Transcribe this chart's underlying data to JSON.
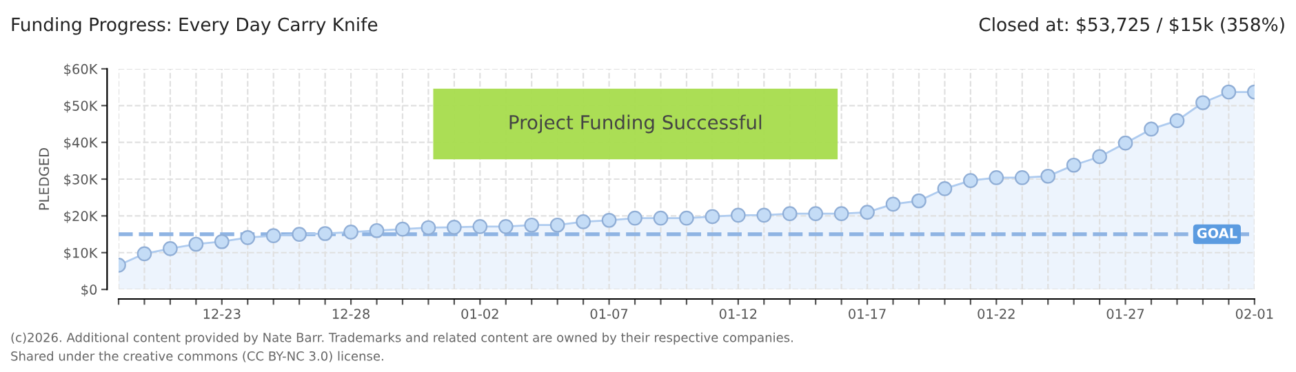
{
  "chart_data": {
    "type": "area",
    "title": "Funding Progress: Every Day Carry Knife",
    "ylabel": "PLEDGED",
    "annotations": [
      "Closed at: $53,725 / $15k (358%)",
      "Project Funding Successful",
      "(c)2026. Additional content provided by Nate Barr. Trademarks and related content are owned by their respective companies.",
      "Shared under the creative commons (CC BY-NC 3.0) license."
    ],
    "x": [
      "2025-12-19",
      "2025-12-20",
      "2025-12-21",
      "2025-12-22",
      "2025-12-23",
      "2025-12-24",
      "2025-12-25",
      "2025-12-26",
      "2025-12-27",
      "2025-12-28",
      "2025-12-29",
      "2025-12-30",
      "2025-12-31",
      "2026-01-01",
      "2026-01-02",
      "2026-01-03",
      "2026-01-04",
      "2026-01-05",
      "2026-01-06",
      "2026-01-07",
      "2026-01-08",
      "2026-01-09",
      "2026-01-10",
      "2026-01-11",
      "2026-01-12",
      "2026-01-13",
      "2026-01-14",
      "2026-01-15",
      "2026-01-16",
      "2026-01-17",
      "2026-01-18",
      "2026-01-19",
      "2026-01-20",
      "2026-01-21",
      "2026-01-22",
      "2026-01-23",
      "2026-01-24",
      "2026-01-25",
      "2026-01-26",
      "2026-01-27",
      "2026-01-28",
      "2026-01-29",
      "2026-01-30",
      "2026-01-31",
      "2026-02-01"
    ],
    "series": [
      {
        "color": "#aecbef",
        "values": [
          6600,
          9700,
          11100,
          12300,
          13000,
          14100,
          14600,
          15000,
          15200,
          15600,
          16000,
          16400,
          16800,
          16900,
          17100,
          17100,
          17500,
          17500,
          18400,
          18800,
          19400,
          19400,
          19400,
          19800,
          20200,
          20200,
          20600,
          20600,
          20600,
          21000,
          23200,
          24100,
          27400,
          29600,
          30400,
          30400,
          30800,
          33800,
          36100,
          39800,
          43600,
          45900,
          50800,
          53700,
          53700
        ]
      }
    ],
    "xlim": [
      "2025-12-19",
      "2026-02-01"
    ],
    "xticks": [
      {
        "value": "2025-12-19",
        "label": null
      },
      {
        "value": "2025-12-20",
        "label": null
      },
      {
        "value": "2025-12-21",
        "label": null
      },
      {
        "value": "2025-12-22",
        "label": null
      },
      {
        "value": "2025-12-23",
        "label": "12-23"
      },
      {
        "value": "2025-12-24",
        "label": null
      },
      {
        "value": "2025-12-25",
        "label": null
      },
      {
        "value": "2025-12-26",
        "label": null
      },
      {
        "value": "2025-12-27",
        "label": null
      },
      {
        "value": "2025-12-28",
        "label": "12-28"
      },
      {
        "value": "2025-12-29",
        "label": null
      },
      {
        "value": "2025-12-30",
        "label": null
      },
      {
        "value": "2025-12-31",
        "label": null
      },
      {
        "value": "2026-01-01",
        "label": null
      },
      {
        "value": "2026-01-02",
        "label": "01-02"
      },
      {
        "value": "2026-01-03",
        "label": null
      },
      {
        "value": "2026-01-04",
        "label": null
      },
      {
        "value": "2026-01-05",
        "label": null
      },
      {
        "value": "2026-01-06",
        "label": null
      },
      {
        "value": "2026-01-07",
        "label": "01-07"
      },
      {
        "value": "2026-01-08",
        "label": null
      },
      {
        "value": "2026-01-09",
        "label": null
      },
      {
        "value": "2026-01-10",
        "label": null
      },
      {
        "value": "2026-01-11",
        "label": null
      },
      {
        "value": "2026-01-12",
        "label": "01-12"
      },
      {
        "value": "2026-01-13",
        "label": null
      },
      {
        "value": "2026-01-14",
        "label": null
      },
      {
        "value": "2026-01-15",
        "label": null
      },
      {
        "value": "2026-01-16",
        "label": null
      },
      {
        "value": "2026-01-17",
        "label": "01-17"
      },
      {
        "value": "2026-01-18",
        "label": null
      },
      {
        "value": "2026-01-19",
        "label": null
      },
      {
        "value": "2026-01-20",
        "label": null
      },
      {
        "value": "2026-01-21",
        "label": null
      },
      {
        "value": "2026-01-22",
        "label": "01-22"
      },
      {
        "value": "2026-01-23",
        "label": null
      },
      {
        "value": "2026-01-24",
        "label": null
      },
      {
        "value": "2026-01-25",
        "label": null
      },
      {
        "value": "2026-01-26",
        "label": null
      },
      {
        "value": "2026-01-27",
        "label": "01-27"
      },
      {
        "value": "2026-01-28",
        "label": null
      },
      {
        "value": "2026-01-29",
        "label": null
      },
      {
        "value": "2026-01-30",
        "label": null
      },
      {
        "value": "2026-01-31",
        "label": null
      },
      {
        "value": "2026-02-01",
        "label": "02-01"
      }
    ],
    "ylim": [
      0,
      60000
    ],
    "yticks": [
      {
        "value": 0,
        "label": "$0"
      },
      {
        "value": 10000,
        "label": "$10K"
      },
      {
        "value": 20000,
        "label": "$20K"
      },
      {
        "value": 30000,
        "label": "$30K"
      },
      {
        "value": 40000,
        "label": "$40K"
      },
      {
        "value": 50000,
        "label": "$50K"
      },
      {
        "value": 60000,
        "label": "$60K"
      }
    ],
    "ref_lines": [
      {
        "axis": "y",
        "value": 15000,
        "label": "GOAL",
        "color": "#8fb4e3",
        "line_style": "dashed"
      }
    ],
    "grid": true,
    "marker": "circle"
  }
}
